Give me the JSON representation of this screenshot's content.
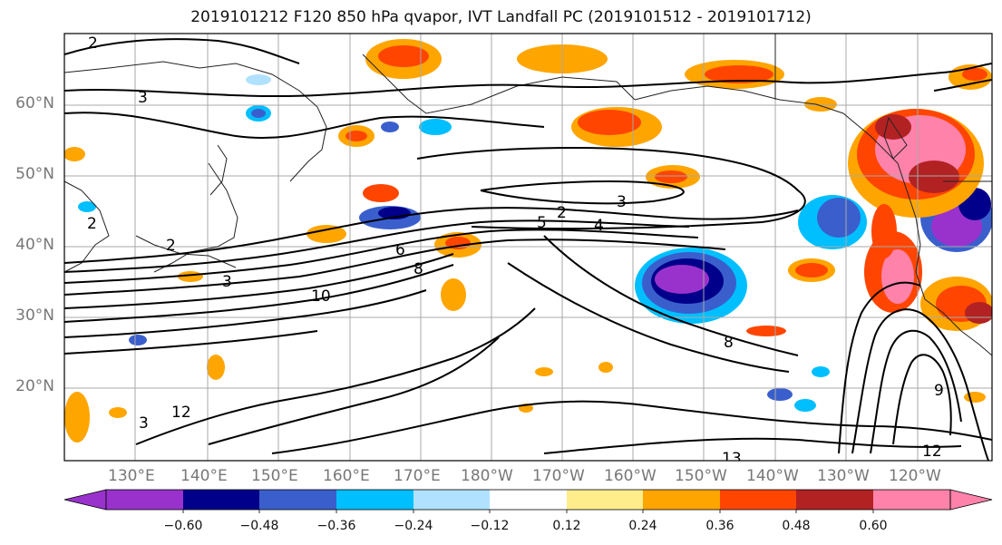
{
  "title": "2019101212 F120 850 hPa qvapor, IVT Landfall PC (2019101512 - 2019101712)",
  "lat_labels": [
    "60°N",
    "50°N",
    "40°N",
    "30°N",
    "20°N"
  ],
  "lon_labels": [
    "130°E",
    "140°E",
    "150°E",
    "160°E",
    "170°E",
    "180°W",
    "170°W",
    "160°W",
    "150°W",
    "140°W",
    "130°W",
    "120°W"
  ],
  "colorbar": {
    "tick_labels": [
      "−0.60",
      "−0.48",
      "−0.36",
      "−0.24",
      "−0.12",
      "0.12",
      "0.24",
      "0.36",
      "0.48",
      "0.60"
    ],
    "colors": [
      "#9932cc",
      "#00008b",
      "#3a5fcd",
      "#00bfff",
      "#b0e2ff",
      "#ffffff",
      "#ffec8b",
      "#ffa500",
      "#ff4500",
      "#b22222",
      "#ff82ab"
    ]
  },
  "contour_labels": [
    "2",
    "3",
    "2",
    "2",
    "3",
    "5",
    "3",
    "2",
    "4",
    "6",
    "8",
    "10",
    "12",
    "8",
    "13",
    "12",
    "9",
    "3"
  ]
}
